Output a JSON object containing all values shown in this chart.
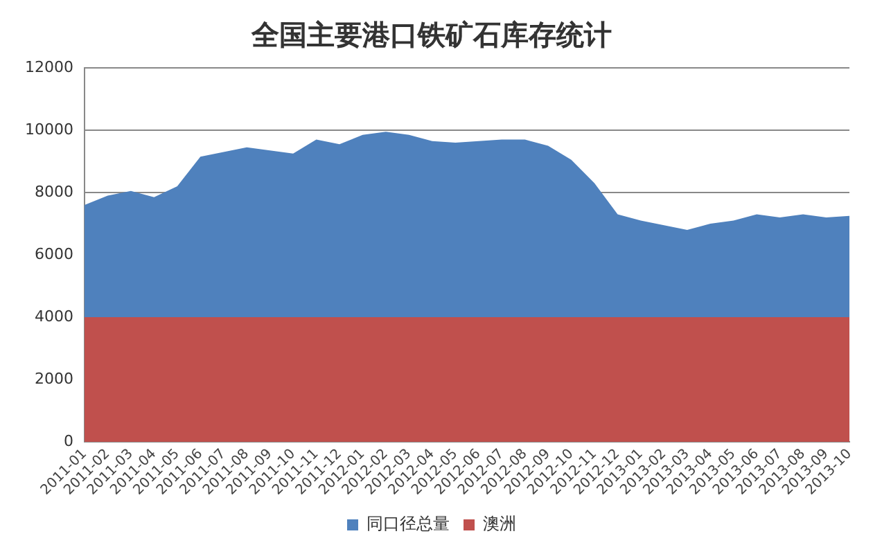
{
  "chart_data": {
    "type": "area",
    "title": "全国主要港口铁矿石库存统计",
    "categories": [
      "2011-01",
      "2011-02",
      "2011-03",
      "2011-04",
      "2011-05",
      "2011-06",
      "2011-07",
      "2011-08",
      "2011-09",
      "2011-10",
      "2011-11",
      "2011-12",
      "2012-01",
      "2012-02",
      "2012-03",
      "2012-04",
      "2012-05",
      "2012-06",
      "2012-07",
      "2012-08",
      "2012-09",
      "2012-10",
      "2012-11",
      "2012-12",
      "2013-01",
      "2013-02",
      "2013-03",
      "2013-04",
      "2013-05",
      "2013-06",
      "2013-07",
      "2013-08",
      "2013-09",
      "2013-10"
    ],
    "series": [
      {
        "name": "同口径总量",
        "color": "#4f81bd",
        "values": [
          7600,
          7900,
          8050,
          7850,
          8200,
          9150,
          9300,
          9450,
          9350,
          9250,
          9700,
          9550,
          9850,
          9950,
          9850,
          9650,
          9600,
          9650,
          9700,
          9700,
          9500,
          9050,
          8300,
          7300,
          7100,
          6950,
          6800,
          7000,
          7100,
          7300,
          7200,
          7300,
          7200,
          7250
        ]
      },
      {
        "name": "澳洲",
        "color": "#c0504d",
        "values": [
          4000,
          4000,
          4000,
          4000,
          4000,
          4000,
          4000,
          4000,
          4000,
          4000,
          4000,
          4000,
          4000,
          4000,
          4000,
          4000,
          4000,
          4000,
          4000,
          4000,
          4000,
          4000,
          4000,
          4000,
          4000,
          4000,
          4000,
          4000,
          4000,
          4000,
          4000,
          4000,
          4000,
          4000
        ]
      }
    ],
    "ylim": [
      0,
      12000
    ],
    "yticks": [
      0,
      2000,
      4000,
      6000,
      8000,
      10000,
      12000
    ],
    "grid": "y",
    "legend": "bottom"
  }
}
